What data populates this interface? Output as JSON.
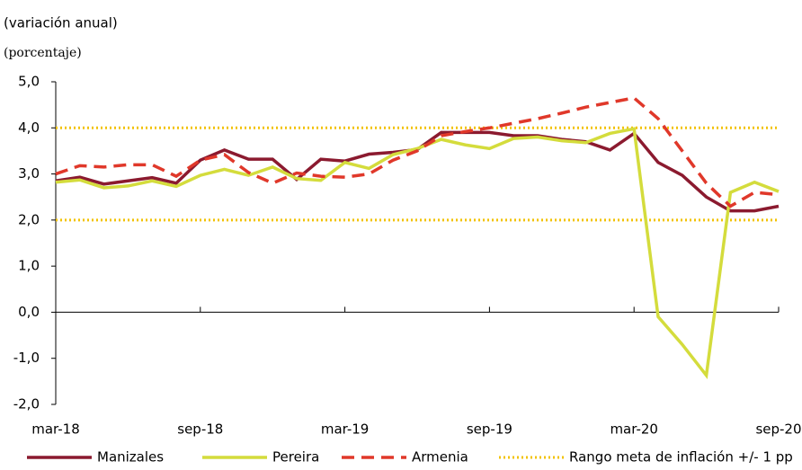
{
  "chart_data": {
    "type": "line",
    "subtitle": "(variación anual)",
    "unit_label": "(porcentaje)",
    "categories": [
      "mar-18",
      null,
      null,
      null,
      null,
      null,
      "sep-18",
      null,
      null,
      null,
      null,
      null,
      "mar-19",
      null,
      null,
      null,
      null,
      null,
      "sep-19",
      null,
      null,
      null,
      null,
      null,
      "mar-20",
      null,
      null,
      null,
      null,
      null,
      "sep-20"
    ],
    "series": [
      {
        "name": "Manizales",
        "color": "#8b1a2f",
        "dash": "solid",
        "values": [
          2.85,
          2.93,
          2.78,
          2.85,
          2.92,
          2.8,
          3.3,
          3.52,
          3.32,
          3.32,
          2.88,
          3.32,
          3.28,
          3.43,
          3.47,
          3.53,
          3.9,
          3.9,
          3.9,
          3.83,
          3.83,
          3.75,
          3.7,
          3.52,
          3.88,
          3.25,
          2.97,
          2.5,
          2.2,
          2.2,
          2.3
        ]
      },
      {
        "name": "Pereira",
        "color": "#d4dc3c",
        "dash": "solid",
        "values": [
          2.82,
          2.87,
          2.7,
          2.74,
          2.85,
          2.73,
          2.97,
          3.1,
          2.97,
          3.15,
          2.9,
          2.86,
          3.25,
          3.12,
          3.42,
          3.55,
          3.75,
          3.63,
          3.55,
          3.77,
          3.8,
          3.72,
          3.68,
          3.88,
          3.98,
          -0.1,
          -0.7,
          -1.37,
          2.6,
          2.82,
          2.62
        ]
      },
      {
        "name": "Armenia",
        "color": "#e0382a",
        "dash": "dashed",
        "values": [
          3.0,
          3.18,
          3.15,
          3.2,
          3.2,
          2.95,
          3.3,
          3.42,
          3.03,
          2.8,
          3.02,
          2.95,
          2.93,
          3.0,
          3.3,
          3.5,
          3.83,
          3.92,
          4.0,
          4.1,
          4.2,
          4.32,
          4.45,
          4.55,
          4.65,
          4.2,
          3.5,
          2.8,
          2.3,
          2.6,
          2.55
        ]
      }
    ],
    "target_band": {
      "name": "Rango meta de inflación +/- 1 pp",
      "color": "#f2c200",
      "values": [
        2.0,
        4.0
      ]
    },
    "ylim": [
      -2,
      5
    ],
    "yticks": [
      {
        "value": -2,
        "label": "-2,0"
      },
      {
        "value": -1,
        "label": "-1,0"
      },
      {
        "value": 0,
        "label": "0,0"
      },
      {
        "value": 1,
        "label": "1,0"
      },
      {
        "value": 2,
        "label": "2,0"
      },
      {
        "value": 3,
        "label": "3,0"
      },
      {
        "value": 4,
        "label": "4,0"
      },
      {
        "value": 5,
        "label": "5,0"
      }
    ]
  }
}
